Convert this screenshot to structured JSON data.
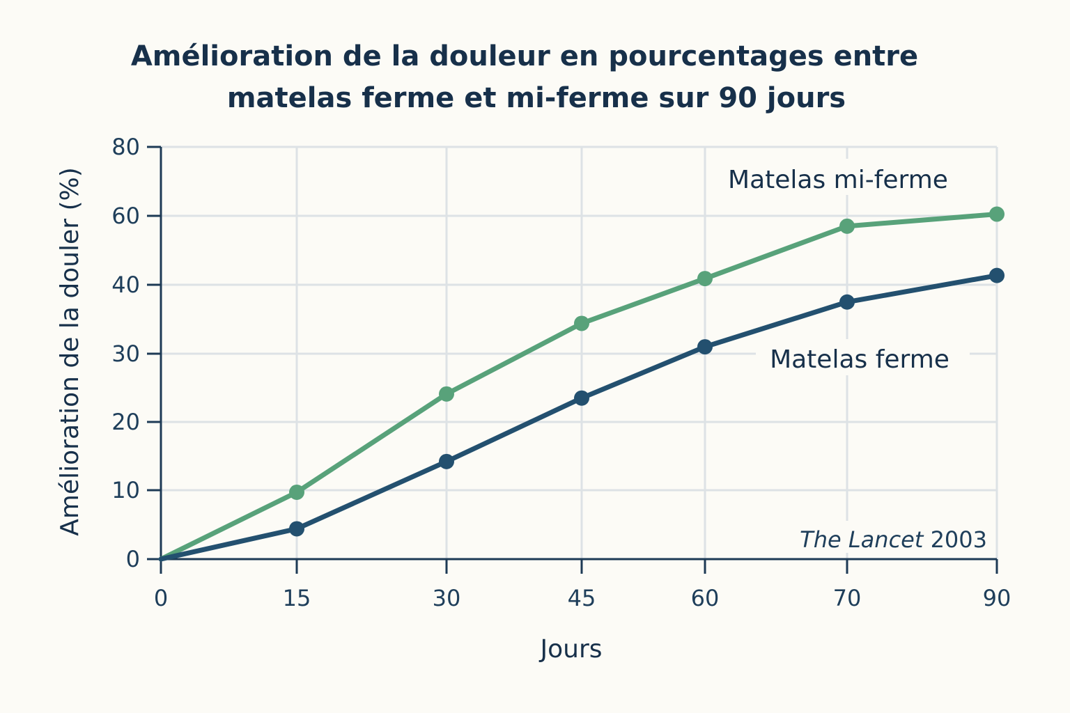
{
  "chart_data": {
    "type": "line",
    "title": [
      "Amélioration de la douleur en pourcentages entre",
      "matelas ferme et mi-ferme sur 90 jours"
    ],
    "xlabel": "Jours",
    "ylabel": "Amélioration de la douler (%)",
    "x_categories": [
      "0",
      "15",
      "30",
      "45",
      "60",
      "70",
      "90"
    ],
    "y_ticks": [
      "0",
      "10",
      "20",
      "30",
      "40",
      "60",
      "80"
    ],
    "y_tick_values": [
      0,
      10,
      20,
      30,
      40,
      60,
      80
    ],
    "grid": true,
    "series": [
      {
        "name": "Matelas mi-ferme",
        "color": "#58a27a",
        "values": [
          0,
          9.7,
          24.1,
          34.4,
          41.8,
          57,
          60.5
        ]
      },
      {
        "name": "Matelas ferme",
        "color": "#23506f",
        "values": [
          0,
          4.4,
          14.2,
          23.5,
          31,
          37.5,
          42.7
        ]
      }
    ],
    "source": {
      "italic": "The Lancet",
      "rest": " 2003"
    }
  }
}
